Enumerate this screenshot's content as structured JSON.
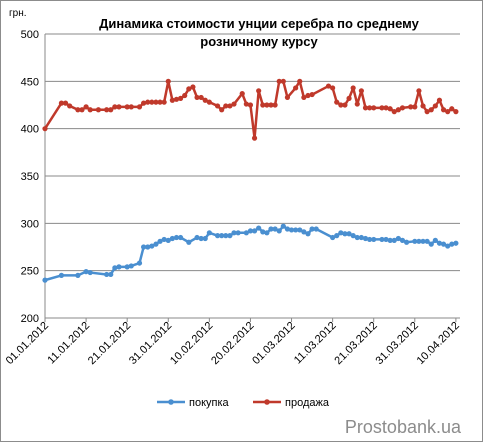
{
  "chart_data": {
    "type": "line",
    "title_line1": "Динамика стоимости унции серебра по среднему",
    "title_line2": "розничному курсу",
    "ylabel": "грн.",
    "ylim": [
      200,
      500
    ],
    "yticks": [
      200,
      250,
      300,
      350,
      400,
      450,
      500
    ],
    "xlim_day": [
      0,
      101
    ],
    "xticks": [
      {
        "label": "01.01.2012",
        "day": 0
      },
      {
        "label": "11.01.2012",
        "day": 10
      },
      {
        "label": "21.01.2012",
        "day": 20
      },
      {
        "label": "31.01.2012",
        "day": 30
      },
      {
        "label": "10.02.2012",
        "day": 40
      },
      {
        "label": "20.02.2012",
        "day": 50
      },
      {
        "label": "01.03.2012",
        "day": 60
      },
      {
        "label": "11.03.2012",
        "day": 70
      },
      {
        "label": "21.03.2012",
        "day": 80
      },
      {
        "label": "31.03.2012",
        "day": 90
      },
      {
        "label": "10.04.2012",
        "day": 100
      }
    ],
    "grid": true,
    "legend_position": "bottom",
    "series": [
      {
        "name": "покупка",
        "color": "#4a8fd0",
        "points": [
          [
            0,
            240
          ],
          [
            4,
            245
          ],
          [
            8,
            245
          ],
          [
            10,
            249
          ],
          [
            11,
            248
          ],
          [
            15,
            246
          ],
          [
            16,
            246
          ],
          [
            17,
            253
          ],
          [
            18,
            254
          ],
          [
            20,
            254
          ],
          [
            21,
            255
          ],
          [
            23,
            258
          ],
          [
            24,
            275
          ],
          [
            25,
            275
          ],
          [
            26,
            276
          ],
          [
            27,
            278
          ],
          [
            28,
            281
          ],
          [
            29,
            283
          ],
          [
            30,
            282
          ],
          [
            31,
            284
          ],
          [
            32,
            285
          ],
          [
            33,
            285
          ],
          [
            35,
            280
          ],
          [
            37,
            285
          ],
          [
            38,
            284
          ],
          [
            39,
            284
          ],
          [
            40,
            290
          ],
          [
            42,
            287
          ],
          [
            43,
            287
          ],
          [
            44,
            287
          ],
          [
            45,
            287
          ],
          [
            46,
            290
          ],
          [
            47,
            290
          ],
          [
            49,
            290
          ],
          [
            50,
            292
          ],
          [
            51,
            292
          ],
          [
            52,
            295
          ],
          [
            53,
            291
          ],
          [
            54,
            290
          ],
          [
            55,
            294
          ],
          [
            56,
            294
          ],
          [
            57,
            292
          ],
          [
            58,
            297
          ],
          [
            59,
            294
          ],
          [
            60,
            293
          ],
          [
            61,
            293
          ],
          [
            62,
            293
          ],
          [
            63,
            291
          ],
          [
            64,
            289
          ],
          [
            65,
            294
          ],
          [
            66,
            294
          ],
          [
            70,
            285
          ],
          [
            71,
            287
          ],
          [
            72,
            290
          ],
          [
            73,
            289
          ],
          [
            74,
            289
          ],
          [
            75,
            287
          ],
          [
            76,
            285
          ],
          [
            77,
            285
          ],
          [
            78,
            284
          ],
          [
            79,
            283
          ],
          [
            80,
            283
          ],
          [
            82,
            283
          ],
          [
            83,
            283
          ],
          [
            84,
            282
          ],
          [
            85,
            282
          ],
          [
            86,
            284
          ],
          [
            87,
            282
          ],
          [
            88,
            280
          ],
          [
            90,
            281
          ],
          [
            91,
            281
          ],
          [
            92,
            281
          ],
          [
            93,
            281
          ],
          [
            94,
            278
          ],
          [
            95,
            282
          ],
          [
            96,
            279
          ],
          [
            97,
            278
          ],
          [
            98,
            276
          ],
          [
            99,
            278
          ],
          [
            100,
            279
          ]
        ]
      },
      {
        "name": "продажа",
        "color": "#c0392b",
        "points": [
          [
            0,
            400
          ],
          [
            4,
            427
          ],
          [
            5,
            427
          ],
          [
            6,
            424
          ],
          [
            8,
            420
          ],
          [
            9,
            420
          ],
          [
            10,
            423
          ],
          [
            11,
            420
          ],
          [
            13,
            420
          ],
          [
            15,
            420
          ],
          [
            16,
            420
          ],
          [
            17,
            423
          ],
          [
            18,
            423
          ],
          [
            20,
            423
          ],
          [
            21,
            423
          ],
          [
            23,
            423
          ],
          [
            24,
            427
          ],
          [
            25,
            428
          ],
          [
            26,
            428
          ],
          [
            27,
            428
          ],
          [
            28,
            428
          ],
          [
            29,
            428
          ],
          [
            30,
            450
          ],
          [
            31,
            430
          ],
          [
            32,
            431
          ],
          [
            33,
            432
          ],
          [
            34,
            435
          ],
          [
            35,
            442
          ],
          [
            36,
            444
          ],
          [
            37,
            433
          ],
          [
            38,
            433
          ],
          [
            39,
            430
          ],
          [
            40,
            428
          ],
          [
            42,
            424
          ],
          [
            43,
            420
          ],
          [
            44,
            424
          ],
          [
            45,
            424
          ],
          [
            46,
            426
          ],
          [
            48,
            437
          ],
          [
            49,
            426
          ],
          [
            50,
            425
          ],
          [
            51,
            390
          ],
          [
            52,
            440
          ],
          [
            53,
            425
          ],
          [
            54,
            425
          ],
          [
            55,
            425
          ],
          [
            56,
            425
          ],
          [
            57,
            450
          ],
          [
            58,
            450
          ],
          [
            59,
            433
          ],
          [
            61,
            443
          ],
          [
            62,
            450
          ],
          [
            63,
            433
          ],
          [
            64,
            435
          ],
          [
            65,
            436
          ],
          [
            69,
            445
          ],
          [
            70,
            443
          ],
          [
            71,
            428
          ],
          [
            72,
            425
          ],
          [
            73,
            425
          ],
          [
            74,
            432
          ],
          [
            75,
            443
          ],
          [
            76,
            426
          ],
          [
            77,
            440
          ],
          [
            78,
            422
          ],
          [
            79,
            422
          ],
          [
            80,
            422
          ],
          [
            82,
            422
          ],
          [
            83,
            422
          ],
          [
            84,
            421
          ],
          [
            85,
            418
          ],
          [
            86,
            420
          ],
          [
            87,
            422
          ],
          [
            89,
            423
          ],
          [
            90,
            423
          ],
          [
            91,
            440
          ],
          [
            92,
            424
          ],
          [
            93,
            418
          ],
          [
            94,
            420
          ],
          [
            95,
            424
          ],
          [
            96,
            430
          ],
          [
            97,
            420
          ],
          [
            98,
            418
          ],
          [
            99,
            421
          ],
          [
            100,
            418
          ]
        ]
      }
    ]
  },
  "watermark": "Prostobank.ua"
}
